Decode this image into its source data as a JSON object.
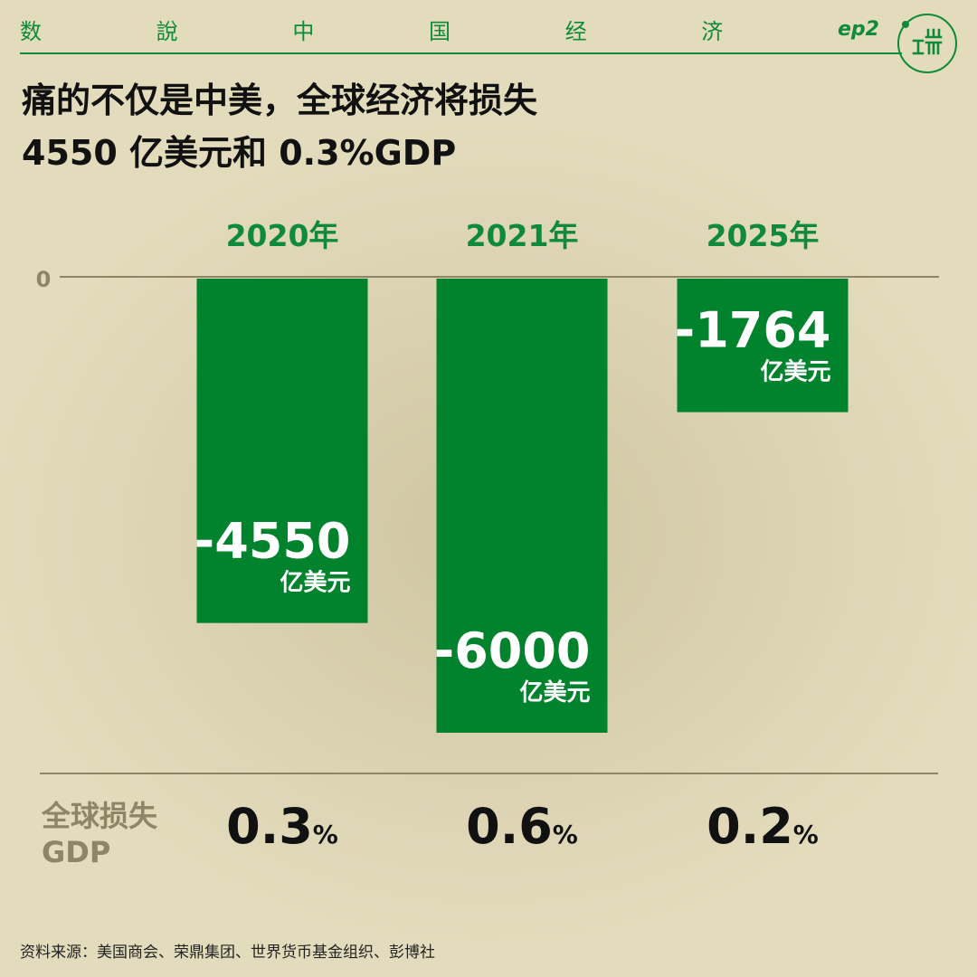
{
  "header": {
    "series_chars": [
      "数",
      "說",
      "中",
      "国",
      "经",
      "济"
    ],
    "episode": "ep2"
  },
  "headline": {
    "line1": "痛的不仅是中美，全球经济将损失",
    "line2": "4550 亿美元和 0.3%GDP"
  },
  "chart_data": {
    "type": "bar",
    "categories": [
      "2020年",
      "2021年",
      "2025年"
    ],
    "values": [
      -4550,
      -6000,
      -1764
    ],
    "unit": "亿美元",
    "baseline_label": "0",
    "ylim": [
      -6000,
      0
    ],
    "bar_color": "#01822c",
    "category_color": "#0e8a3a",
    "grid": false
  },
  "gdp": {
    "label_line1": "全球损失",
    "label_line2": "GDP",
    "values": [
      "0.3",
      "0.6",
      "0.2"
    ],
    "unit": "%"
  },
  "source": "资料来源：美国商会、荣鼎集团、世界货币基金组织、彭博社"
}
